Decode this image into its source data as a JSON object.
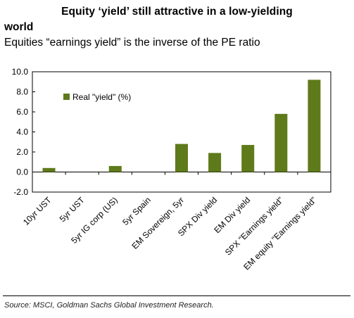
{
  "title_line1": "Equity ‘yield’ still attractive in a low-yielding",
  "title_line2": "world",
  "subtitle": "Equities “earnings yield” is the inverse of the PE ratio",
  "source": "Source: MSCI, Goldman Sachs Global Investment Research.",
  "colors": {
    "bar": "#5f7a1a",
    "axis": "#000000",
    "frame": "#000000"
  },
  "chart_data": {
    "type": "bar",
    "categories": [
      "10yr UST",
      "5yr UST",
      "5yr IG corp (US)",
      "5yr Spain",
      "EM Sovereign, 5yr",
      "SPX Div yield",
      "EM Div yield",
      "SPX \"Earnings yield\"",
      "EM equity \"Earnings yield\""
    ],
    "series": [
      {
        "name": "Real \"yield\" (%)",
        "values": [
          0.4,
          0.0,
          0.6,
          0.0,
          2.8,
          1.9,
          2.7,
          5.8,
          9.2
        ]
      }
    ],
    "y_ticks": [
      "10.0",
      "8.0",
      "6.0",
      "4.0",
      "2.0",
      "0.0",
      "-2.0"
    ],
    "ylim": [
      -2,
      10
    ],
    "legend_position": "top-left",
    "grid": false
  }
}
